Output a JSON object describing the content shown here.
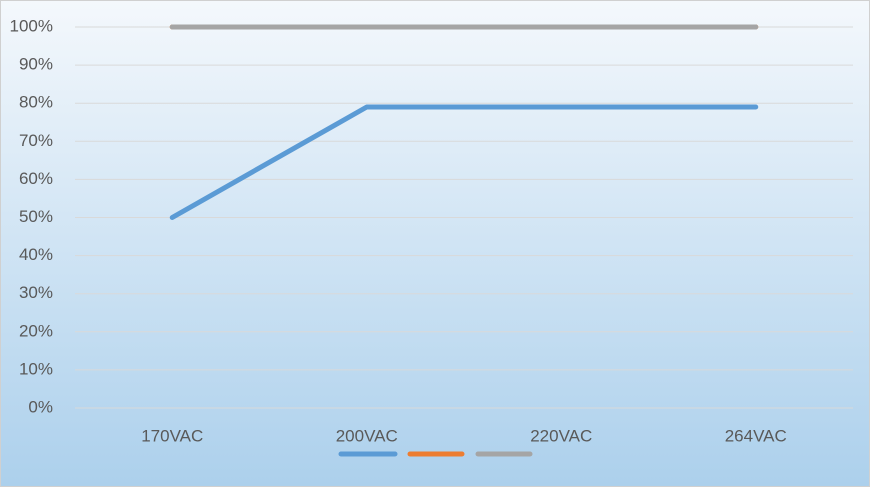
{
  "chart_data": {
    "type": "line",
    "categories": [
      "170VAC",
      "200VAC",
      "220VAC",
      "264VAC"
    ],
    "series": [
      {
        "color": "#5b9bd5",
        "values": [
          50,
          79,
          79,
          79
        ]
      },
      {
        "color": "#ed7d31",
        "values": [
          100,
          100,
          100,
          100
        ]
      },
      {
        "color": "#a5a5a5",
        "values": [
          100,
          100,
          100,
          100
        ]
      }
    ],
    "ylim": [
      0,
      100
    ],
    "yticks": [
      {
        "value": 0,
        "label": "0%"
      },
      {
        "value": 10,
        "label": "10%"
      },
      {
        "value": 20,
        "label": "20%"
      },
      {
        "value": 30,
        "label": "30%"
      },
      {
        "value": 40,
        "label": "40%"
      },
      {
        "value": 50,
        "label": "50%"
      },
      {
        "value": 60,
        "label": "60%"
      },
      {
        "value": 70,
        "label": "70%"
      },
      {
        "value": 80,
        "label": "80%"
      },
      {
        "value": 90,
        "label": "90%"
      },
      {
        "value": 100,
        "label": "100%"
      }
    ],
    "grid": true,
    "legend": "bottom"
  }
}
